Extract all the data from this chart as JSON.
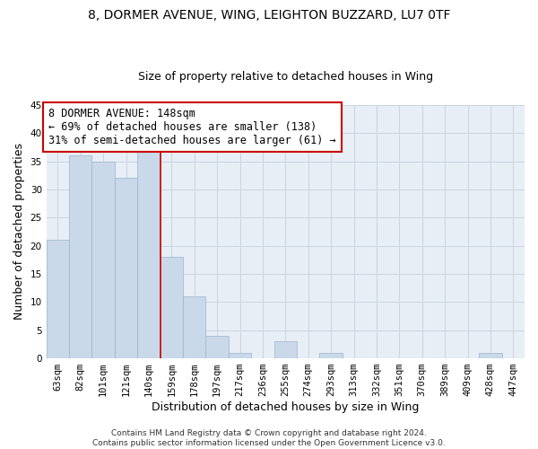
{
  "title": "8, DORMER AVENUE, WING, LEIGHTON BUZZARD, LU7 0TF",
  "subtitle": "Size of property relative to detached houses in Wing",
  "xlabel": "Distribution of detached houses by size in Wing",
  "ylabel": "Number of detached properties",
  "bar_color": "#c9d9ea",
  "bar_edge_color": "#9ab4cc",
  "background_color": "#ffffff",
  "plot_bg_color": "#e8eef5",
  "grid_color": "#c8d4e0",
  "categories": [
    "63sqm",
    "82sqm",
    "101sqm",
    "121sqm",
    "140sqm",
    "159sqm",
    "178sqm",
    "197sqm",
    "217sqm",
    "236sqm",
    "255sqm",
    "274sqm",
    "293sqm",
    "313sqm",
    "332sqm",
    "351sqm",
    "370sqm",
    "389sqm",
    "409sqm",
    "428sqm",
    "447sqm"
  ],
  "values": [
    21,
    36,
    35,
    32,
    37,
    18,
    11,
    4,
    1,
    0,
    3,
    0,
    1,
    0,
    0,
    0,
    0,
    0,
    0,
    1,
    0
  ],
  "ylim": [
    0,
    45
  ],
  "yticks": [
    0,
    5,
    10,
    15,
    20,
    25,
    30,
    35,
    40,
    45
  ],
  "property_line_x": 4.5,
  "property_line_color": "#cc0000",
  "annotation_line1": "8 DORMER AVENUE: 148sqm",
  "annotation_line2": "← 69% of detached houses are smaller (138)",
  "annotation_line3": "31% of semi-detached houses are larger (61) →",
  "annotation_box_color": "#cc0000",
  "footer_line1": "Contains HM Land Registry data © Crown copyright and database right 2024.",
  "footer_line2": "Contains public sector information licensed under the Open Government Licence v3.0.",
  "title_fontsize": 10,
  "subtitle_fontsize": 9,
  "axis_label_fontsize": 9,
  "tick_fontsize": 7.5,
  "annotation_fontsize": 8.5,
  "footer_fontsize": 6.5
}
